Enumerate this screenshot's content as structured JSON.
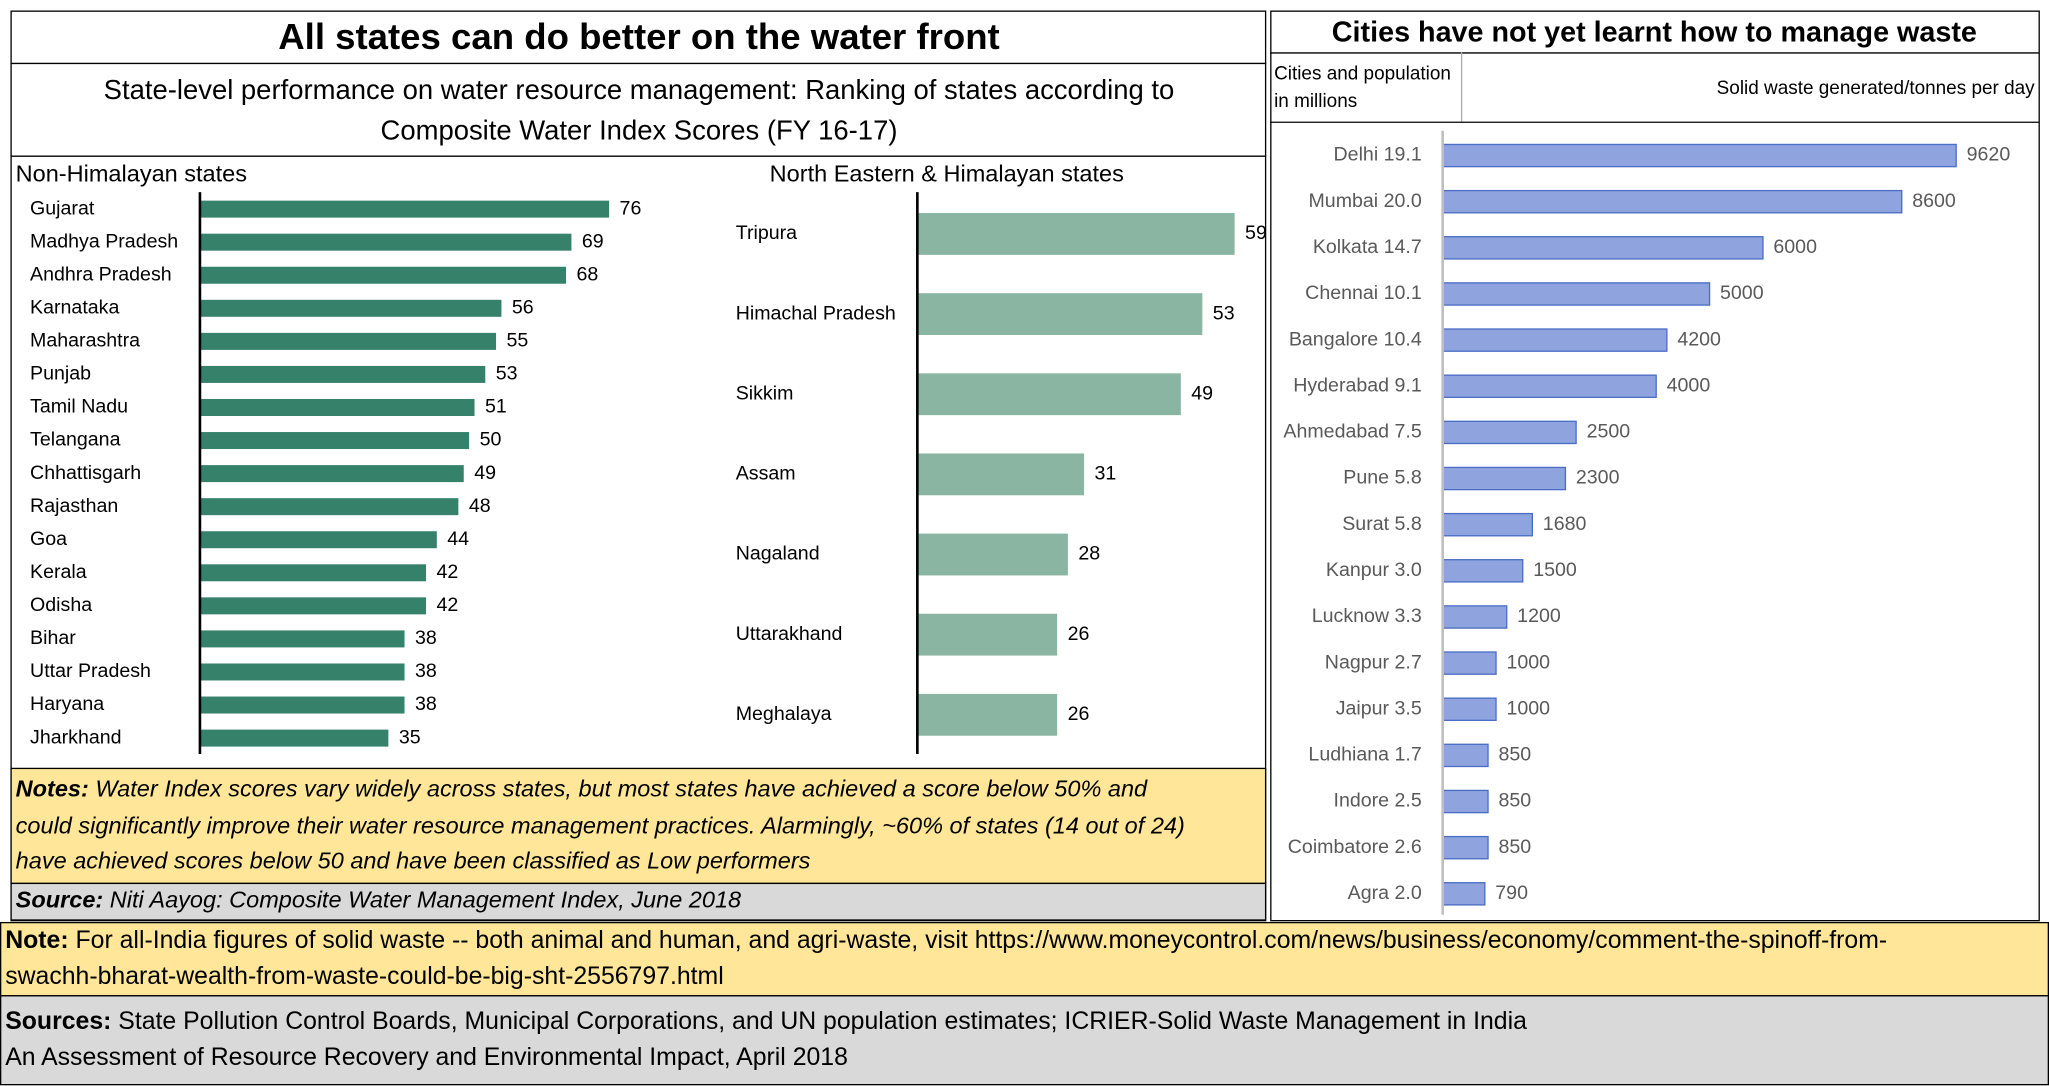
{
  "left_panel": {
    "title": "All states can do better on the water front",
    "subtitle": [
      "State-level performance on water resource management: Ranking of states according to",
      "Composite Water Index Scores (FY 16-17)"
    ],
    "notes_label": "Notes:",
    "notes": [
      " Water Index scores vary widely across states, but most states have achieved a score below 50% and",
      "could significantly improve their water resource management practices.  Alarmingly, ~60% of states (14 out of 24)",
      "have achieved scores below 50 and have been classified as Low performers"
    ],
    "source_label": "Source:",
    "source": " Niti Aayog: Composite Water Management Index, June 2018"
  },
  "right_panel": {
    "title": "Cities have not yet learnt how to manage waste",
    "category_header": [
      "Cities and population",
      "in millions"
    ],
    "value_header": "Solid waste generated/tonnes per day"
  },
  "footer": {
    "note_label": "Note:",
    "note": [
      " For all-India figures of solid waste -- both animal and human, and agri-waste, visit https://www.moneycontrol.com/news/business/economy/comment-the-spinoff-from-",
      "swachh-bharat-wealth-from-waste-could-be-big-sht-2556797.html"
    ],
    "sources_label": "Sources:",
    "sources": [
      " State Pollution Control Boards, Municipal Corporations, and UN population estimates; ICRIER-Solid Waste Management in India",
      "An Assessment of Resource Recovery and Environmental Impact, April 2018"
    ]
  },
  "chart_data": [
    {
      "type": "hbar",
      "title": "Non-Himalayan states",
      "color": "#35816a",
      "categories": [
        "Gujarat",
        "Madhya Pradesh",
        "Andhra Pradesh",
        "Karnataka",
        "Maharashtra",
        "Punjab",
        "Tamil Nadu",
        "Telangana",
        "Chhattisgarh",
        "Rajasthan",
        "Goa",
        "Kerala",
        "Odisha",
        "Bihar",
        "Uttar Pradesh",
        "Haryana",
        "Jharkhand"
      ],
      "values": [
        76,
        69,
        68,
        56,
        55,
        53,
        51,
        50,
        49,
        48,
        44,
        42,
        42,
        38,
        38,
        38,
        35
      ]
    },
    {
      "type": "hbar",
      "title": "North Eastern & Himalayan states",
      "color": "#8ab5a3",
      "categories": [
        "Tripura",
        "Himachal Pradesh",
        "Sikkim",
        "Assam",
        "Nagaland",
        "Uttarakhand",
        "Meghalaya"
      ],
      "values": [
        59,
        53,
        49,
        31,
        28,
        26,
        26
      ]
    },
    {
      "type": "hbar",
      "color": "#8fa4de",
      "categories": [
        "Delhi 19.1",
        "Mumbai 20.0",
        "Kolkata 14.7",
        "Chennai 10.1",
        "Bangalore 10.4",
        "Hyderabad 9.1",
        "Ahmedabad 7.5",
        "Pune 5.8",
        "Surat 5.8",
        "Kanpur 3.0",
        "Lucknow 3.3",
        "Nagpur 2.7",
        "Jaipur 3.5",
        "Ludhiana 1.7",
        "Indore 2.5",
        "Coimbatore 2.6",
        "Agra 2.0"
      ],
      "values": [
        9620,
        8600,
        6000,
        5000,
        4200,
        4000,
        2500,
        2300,
        1680,
        1500,
        1200,
        1000,
        1000,
        850,
        850,
        850,
        790
      ]
    }
  ]
}
